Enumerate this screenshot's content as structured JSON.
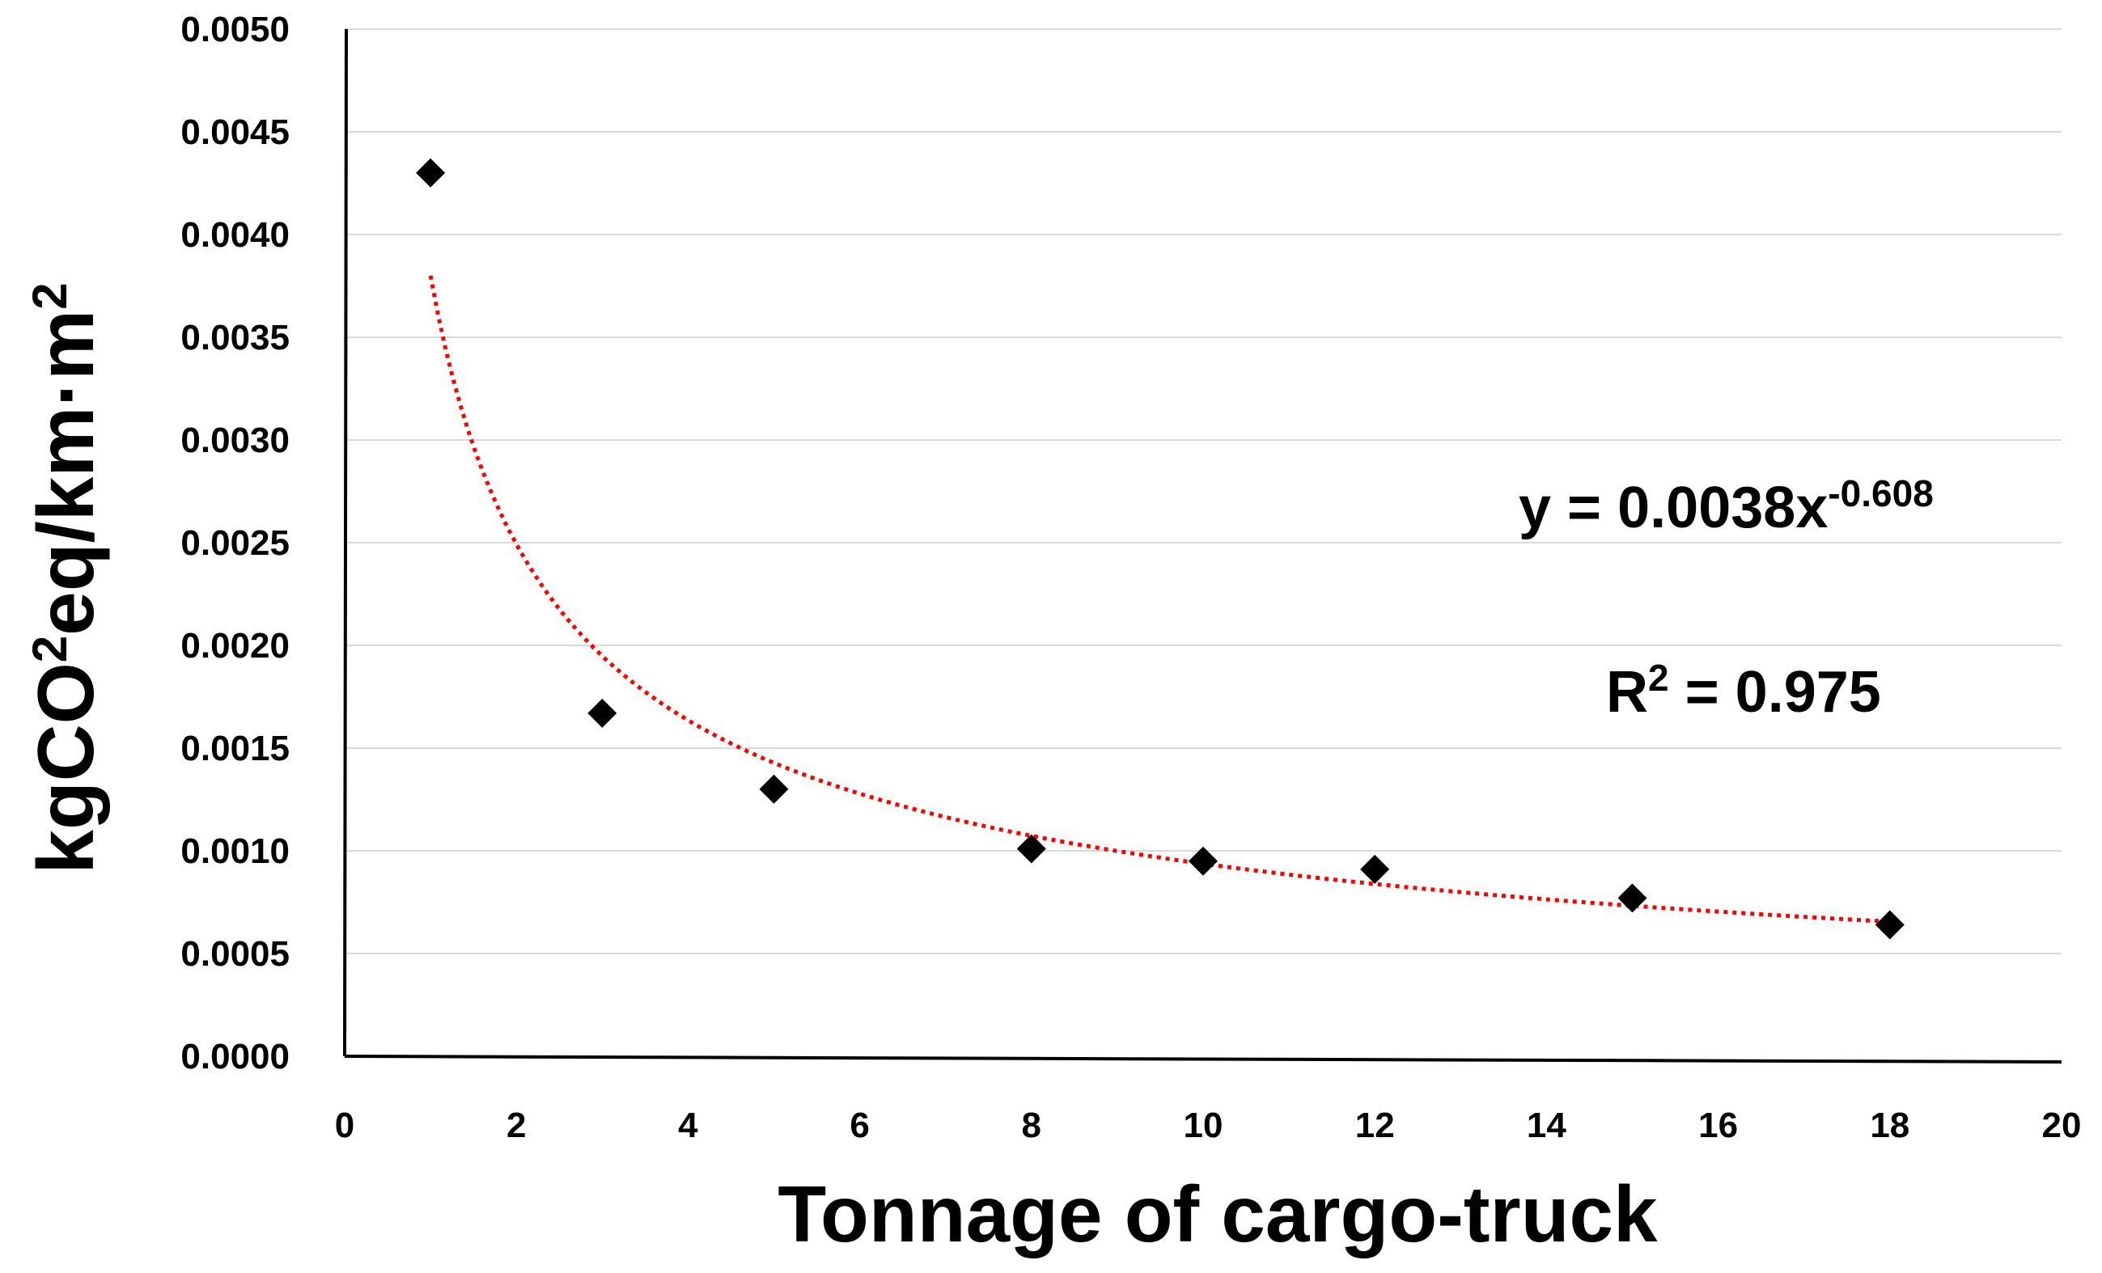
{
  "chart_data": {
    "type": "scatter",
    "title": "",
    "xlabel": "Tonnage of cargo-truck",
    "ylabel": {
      "base": "kgCO",
      "sup1": "2",
      "mid": "eq/km·m",
      "sup2": "2"
    },
    "xlim": [
      0,
      20
    ],
    "ylim": [
      0,
      0.005
    ],
    "x_ticks": [
      0,
      2,
      4,
      6,
      8,
      10,
      12,
      14,
      16,
      18,
      20
    ],
    "y_ticks": [
      "0.0000",
      "0.0005",
      "0.0010",
      "0.0015",
      "0.0020",
      "0.0025",
      "0.0030",
      "0.0035",
      "0.0040",
      "0.0045",
      "0.0050"
    ],
    "gridlines": "horizontal",
    "series": [
      {
        "name": "Data",
        "marker": "diamond",
        "color": "#000000",
        "x": [
          1,
          3,
          5,
          8,
          10,
          12,
          15,
          18
        ],
        "y": [
          0.0043,
          0.00167,
          0.0013,
          0.00101,
          0.00095,
          0.00091,
          0.00077,
          0.00064
        ]
      }
    ],
    "trendline": {
      "type": "power",
      "coefficient": 0.0038,
      "exponent": -0.608,
      "x_range": [
        1,
        18
      ],
      "color": "#ff0000",
      "style": "dotted"
    },
    "annotations": {
      "equation_prefix": "y = 0.0038x",
      "equation_exponent": "-0.608",
      "r2_prefix": "R",
      "r2_sup": "2",
      "r2_value": " = 0.975"
    }
  }
}
